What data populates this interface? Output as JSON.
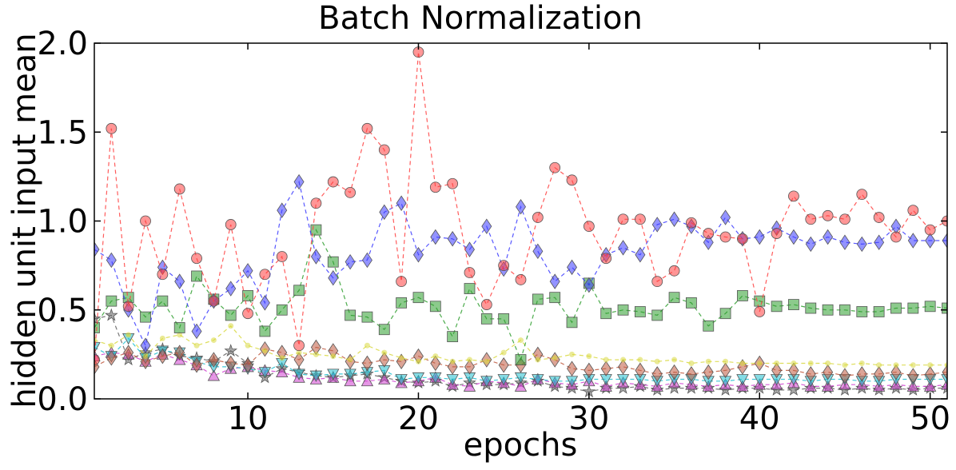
{
  "chart_data": {
    "type": "line",
    "title": "Batch Normalization",
    "xlabel": "epochs",
    "ylabel": "hidden unit input mean",
    "xlim": [
      1,
      51
    ],
    "ylim": [
      0.0,
      2.0
    ],
    "xticks": [
      10,
      20,
      30,
      40,
      50
    ],
    "xtick_labels": [
      "10",
      "20",
      "30",
      "40",
      "50"
    ],
    "yticks": [
      0.0,
      0.5,
      1.0,
      1.5,
      2.0
    ],
    "ytick_labels": [
      "0.0",
      "0.5",
      "1.0",
      "1.5",
      "2.0"
    ],
    "grid": false,
    "x": [
      1,
      2,
      3,
      4,
      5,
      6,
      7,
      8,
      9,
      10,
      11,
      12,
      13,
      14,
      15,
      16,
      17,
      18,
      19,
      20,
      21,
      22,
      23,
      24,
      25,
      26,
      27,
      28,
      29,
      30,
      31,
      32,
      33,
      34,
      35,
      36,
      37,
      38,
      39,
      40,
      41,
      42,
      43,
      44,
      45,
      46,
      47,
      48,
      49,
      50,
      51
    ],
    "series": [
      {
        "name": "red circles",
        "color": "#ff4040",
        "marker": "circle",
        "values": [
          0.22,
          1.52,
          0.52,
          1.0,
          0.7,
          1.18,
          0.79,
          0.55,
          0.98,
          0.48,
          0.7,
          0.8,
          0.3,
          1.1,
          1.22,
          1.16,
          1.52,
          1.4,
          0.66,
          1.95,
          1.19,
          1.21,
          0.71,
          0.53,
          0.75,
          0.67,
          1.02,
          1.3,
          1.23,
          0.97,
          0.79,
          1.01,
          1.01,
          0.66,
          0.72,
          0.99,
          0.93,
          0.91,
          0.9,
          0.49,
          0.93,
          1.14,
          1.01,
          1.03,
          1.01,
          1.15,
          1.02,
          0.91,
          1.06,
          0.95,
          1.0
        ]
      },
      {
        "name": "blue diamonds",
        "color": "#3b3bff",
        "marker": "diamond",
        "values": [
          0.84,
          0.78,
          0.5,
          0.3,
          0.74,
          0.66,
          0.38,
          0.55,
          0.62,
          0.72,
          0.54,
          1.06,
          1.22,
          0.8,
          0.68,
          0.77,
          0.78,
          1.05,
          1.1,
          0.81,
          0.91,
          0.9,
          0.84,
          0.97,
          0.73,
          1.08,
          0.83,
          0.66,
          0.74,
          0.64,
          0.81,
          0.85,
          0.81,
          0.98,
          1.01,
          0.97,
          0.88,
          1.02,
          0.9,
          0.91,
          0.96,
          0.91,
          0.87,
          0.91,
          0.88,
          0.87,
          0.88,
          0.97,
          0.89,
          0.89,
          0.89
        ]
      },
      {
        "name": "green squares",
        "color": "#2e9e2e",
        "marker": "square",
        "values": [
          0.4,
          0.55,
          0.57,
          0.46,
          0.55,
          0.4,
          0.69,
          0.56,
          0.47,
          0.58,
          0.38,
          0.5,
          0.61,
          0.95,
          0.77,
          0.47,
          0.46,
          0.39,
          0.54,
          0.57,
          0.52,
          0.35,
          0.62,
          0.45,
          0.45,
          0.22,
          0.56,
          0.57,
          0.43,
          0.65,
          0.48,
          0.5,
          0.49,
          0.47,
          0.57,
          0.54,
          0.41,
          0.48,
          0.58,
          0.55,
          0.52,
          0.53,
          0.51,
          0.5,
          0.5,
          0.49,
          0.49,
          0.51,
          0.51,
          0.52,
          0.51
        ]
      },
      {
        "name": "yellow dots",
        "color": "#d8d840",
        "marker": "dot",
        "values": [
          0.33,
          0.3,
          0.36,
          0.24,
          0.34,
          0.36,
          0.3,
          0.33,
          0.41,
          0.3,
          0.27,
          0.23,
          0.26,
          0.25,
          0.24,
          0.22,
          0.3,
          0.26,
          0.23,
          0.21,
          0.24,
          0.21,
          0.22,
          0.21,
          0.26,
          0.33,
          0.22,
          0.23,
          0.25,
          0.24,
          0.22,
          0.22,
          0.22,
          0.21,
          0.22,
          0.2,
          0.21,
          0.21,
          0.2,
          0.2,
          0.2,
          0.2,
          0.2,
          0.2,
          0.19,
          0.2,
          0.19,
          0.19,
          0.19,
          0.19,
          0.19
        ]
      },
      {
        "name": "brown diamonds",
        "color": "#c05a40",
        "marker": "diamond",
        "values": [
          0.18,
          0.23,
          0.26,
          0.21,
          0.24,
          0.26,
          0.19,
          0.22,
          0.2,
          0.19,
          0.28,
          0.26,
          0.22,
          0.29,
          0.27,
          0.21,
          0.2,
          0.22,
          0.21,
          0.24,
          0.2,
          0.18,
          0.18,
          0.22,
          0.19,
          0.19,
          0.25,
          0.22,
          0.17,
          0.16,
          0.17,
          0.18,
          0.16,
          0.14,
          0.15,
          0.14,
          0.15,
          0.16,
          0.18,
          0.2,
          0.16,
          0.16,
          0.14,
          0.15,
          0.13,
          0.14,
          0.14,
          0.15,
          0.13,
          0.14,
          0.15
        ]
      },
      {
        "name": "cyan triangles",
        "color": "#20c0d0",
        "marker": "triangle_down",
        "values": [
          0.29,
          0.24,
          0.34,
          0.23,
          0.27,
          0.26,
          0.21,
          0.18,
          0.18,
          0.17,
          0.15,
          0.2,
          0.14,
          0.13,
          0.14,
          0.14,
          0.15,
          0.16,
          0.11,
          0.12,
          0.12,
          0.11,
          0.12,
          0.1,
          0.11,
          0.12,
          0.11,
          0.1,
          0.1,
          0.11,
          0.11,
          0.11,
          0.11,
          0.1,
          0.11,
          0.11,
          0.1,
          0.1,
          0.11,
          0.11,
          0.11,
          0.11,
          0.1,
          0.11,
          0.11,
          0.1,
          0.1,
          0.11,
          0.11,
          0.11,
          0.11
        ]
      },
      {
        "name": "magenta triangles",
        "color": "#d040d0",
        "marker": "triangle_up",
        "values": [
          0.24,
          0.26,
          0.25,
          0.21,
          0.25,
          0.22,
          0.19,
          0.13,
          0.17,
          0.18,
          0.16,
          0.15,
          0.12,
          0.11,
          0.12,
          0.1,
          0.1,
          0.11,
          0.09,
          0.1,
          0.12,
          0.08,
          0.07,
          0.1,
          0.09,
          0.07,
          0.11,
          0.09,
          0.08,
          0.1,
          0.07,
          0.09,
          0.08,
          0.07,
          0.09,
          0.08,
          0.07,
          0.08,
          0.07,
          0.08,
          0.08,
          0.09,
          0.07,
          0.07,
          0.08,
          0.08,
          0.07,
          0.08,
          0.07,
          0.07,
          0.08
        ]
      },
      {
        "name": "gray stars",
        "color": "#606060",
        "marker": "star",
        "values": [
          0.45,
          0.47,
          0.22,
          0.26,
          0.28,
          0.24,
          0.23,
          0.21,
          0.27,
          0.2,
          0.12,
          0.17,
          0.15,
          0.13,
          0.12,
          0.13,
          0.14,
          0.12,
          0.1,
          0.09,
          0.1,
          0.07,
          0.09,
          0.08,
          0.08,
          0.09,
          0.1,
          0.07,
          0.06,
          0.04,
          0.06,
          0.06,
          0.07,
          0.05,
          0.06,
          0.06,
          0.06,
          0.05,
          0.06,
          0.06,
          0.05,
          0.05,
          0.06,
          0.06,
          0.05,
          0.06,
          0.05,
          0.06,
          0.05,
          0.06,
          0.06
        ]
      }
    ]
  }
}
